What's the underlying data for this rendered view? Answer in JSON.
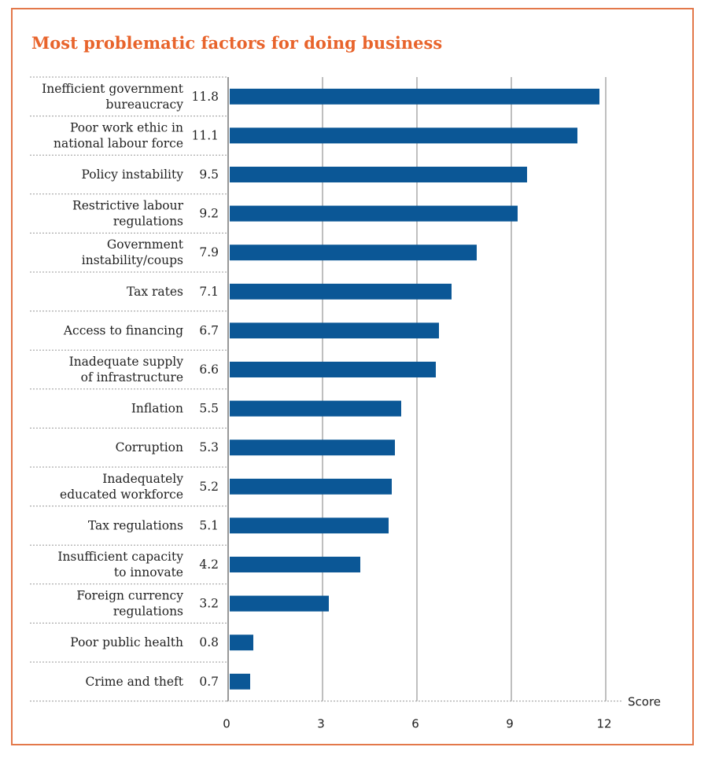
{
  "title": "Most problematic factors for doing business",
  "colors": {
    "bar": "#0b5796",
    "title": "#e8642c",
    "frame": "#e3784a",
    "grid": "#7f7f7f",
    "separator": "#9a9a9a"
  },
  "chart_data": {
    "type": "bar",
    "orientation": "horizontal",
    "title": "Most problematic factors for doing business",
    "xlabel": "Score",
    "ylabel": "",
    "xlim": [
      0,
      12
    ],
    "xticks": [
      "0",
      "3",
      "6",
      "9",
      "12"
    ],
    "grid": true,
    "categories": [
      [
        "Inefficient government",
        "bureaucracy"
      ],
      [
        "Poor work ethic in",
        "national labour force"
      ],
      [
        "Policy instability"
      ],
      [
        "Restrictive labour",
        "regulations"
      ],
      [
        "Government",
        "instability/coups"
      ],
      [
        "Tax rates"
      ],
      [
        "Access to financing"
      ],
      [
        "Inadequate supply",
        "of infrastructure"
      ],
      [
        "Inflation"
      ],
      [
        "Corruption"
      ],
      [
        "Inadequately",
        "educated workforce"
      ],
      [
        "Tax regulations"
      ],
      [
        "Insufficient capacity",
        "to innovate"
      ],
      [
        "Foreign currency",
        "regulations"
      ],
      [
        "Poor public health"
      ],
      [
        "Crime and theft"
      ]
    ],
    "values": [
      11.8,
      11.1,
      9.5,
      9.2,
      7.9,
      7.1,
      6.7,
      6.6,
      5.5,
      5.3,
      5.2,
      5.1,
      4.2,
      3.2,
      0.8,
      0.7
    ],
    "value_labels": [
      "11.8",
      "11.1",
      "9.5",
      "9.2",
      "7.9",
      "7.1",
      "6.7",
      "6.6",
      "5.5",
      "5.3",
      "5.2",
      "5.1",
      "4.2",
      "3.2",
      "0.8",
      "0.7"
    ]
  }
}
